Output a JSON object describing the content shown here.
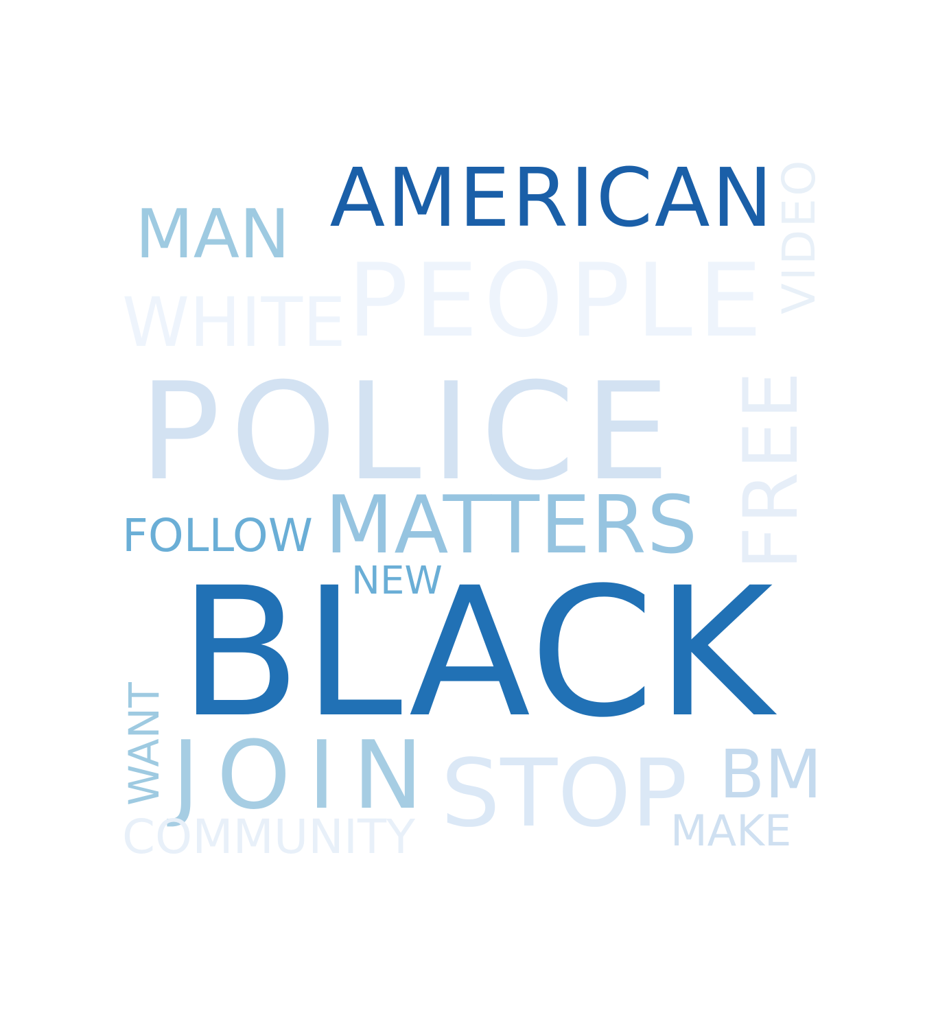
{
  "words": [
    {
      "key": "american",
      "text": "AMERICAN",
      "color": "#1a5fa8",
      "orientation": "horizontal"
    },
    {
      "key": "man",
      "text": "MAN",
      "color": "#9ecae1",
      "orientation": "horizontal"
    },
    {
      "key": "video",
      "text": "VIDEO",
      "color": "#e8f0f8",
      "orientation": "vertical"
    },
    {
      "key": "people",
      "text": "PEOPLE",
      "color": "#eef4fc",
      "orientation": "horizontal"
    },
    {
      "key": "white",
      "text": "WHITE",
      "color": "#eef4fc",
      "orientation": "horizontal"
    },
    {
      "key": "police",
      "text": "POLICE",
      "color": "#d3e2f2",
      "orientation": "horizontal"
    },
    {
      "key": "free",
      "text": "FREE",
      "color": "#e6eef8",
      "orientation": "vertical"
    },
    {
      "key": "follow",
      "text": "FOLLOW",
      "color": "#6aaed6",
      "orientation": "horizontal"
    },
    {
      "key": "matters",
      "text": "MATTERS",
      "color": "#96c4e0",
      "orientation": "horizontal"
    },
    {
      "key": "new",
      "text": "NEW",
      "color": "#6aaed6",
      "orientation": "horizontal"
    },
    {
      "key": "black",
      "text": "BLACK",
      "color": "#2171b5",
      "orientation": "horizontal"
    },
    {
      "key": "want",
      "text": "WANT",
      "color": "#9ecae1",
      "orientation": "vertical"
    },
    {
      "key": "join",
      "text": "JOIN",
      "color": "#a6cde3",
      "orientation": "horizontal"
    },
    {
      "key": "stop",
      "text": "STOP",
      "color": "#dbe8f6",
      "orientation": "horizontal"
    },
    {
      "key": "bm",
      "text": "BM",
      "color": "#c4daee",
      "orientation": "horizontal"
    },
    {
      "key": "make",
      "text": "MAKE",
      "color": "#cfe0f1",
      "orientation": "horizontal"
    },
    {
      "key": "community",
      "text": "COMMUNITY",
      "color": "#e8f0f9",
      "orientation": "horizontal"
    }
  ]
}
